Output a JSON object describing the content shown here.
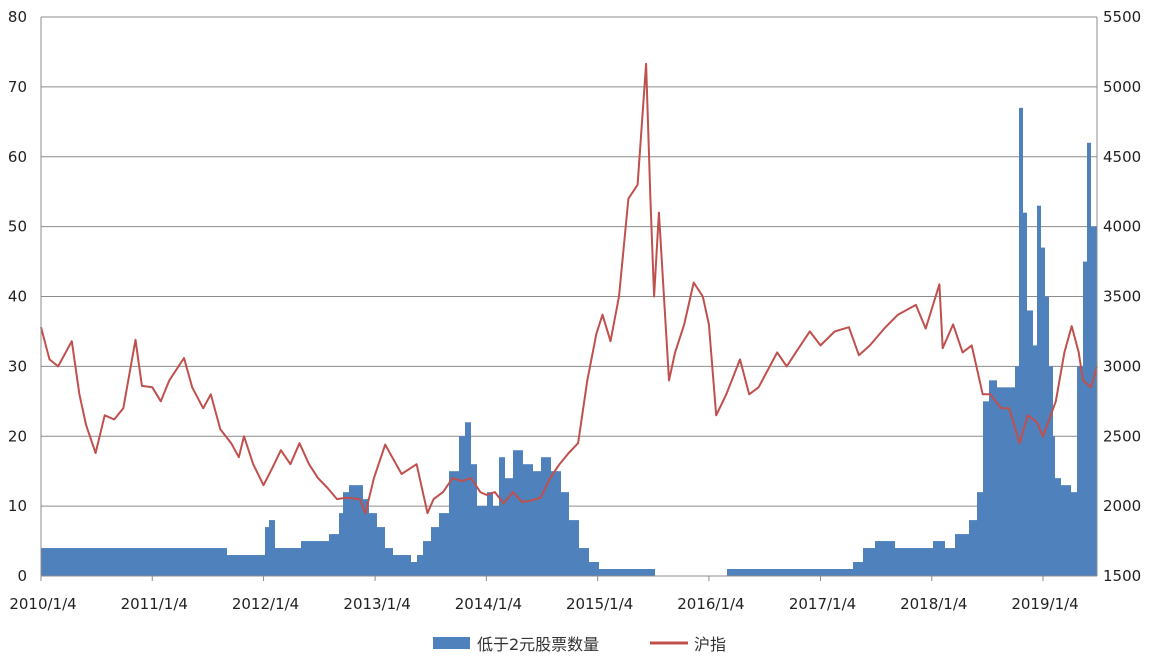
{
  "chart_data": {
    "type": "bar+line",
    "title": "",
    "xlabel": "",
    "x_tick_labels": [
      "2010/1/4",
      "2011/1/4",
      "2012/1/4",
      "2013/1/4",
      "2014/1/4",
      "2015/1/4",
      "2016/1/4",
      "2017/1/4",
      "2018/1/4",
      "2019/1/4"
    ],
    "y_left": {
      "ylim": [
        0,
        80
      ],
      "ticks": [
        "0",
        "10",
        "20",
        "30",
        "40",
        "50",
        "60",
        "70",
        "80"
      ]
    },
    "y_right": {
      "ylim": [
        1500,
        5500
      ],
      "ticks": [
        "1500",
        "2000",
        "2500",
        "3000",
        "3500",
        "4000",
        "4500",
        "5000",
        "5500"
      ]
    },
    "grid": "horizontal",
    "legend_position": "bottom",
    "x_range": [
      "2010-01-04",
      "2019-06-30"
    ],
    "series": [
      {
        "name": "低于2元股票数量",
        "type": "bar",
        "axis": "left",
        "color": "#4F81BD",
        "points": [
          [
            "2010-01-04",
            4
          ],
          [
            "2010-06-01",
            4
          ],
          [
            "2011-01-04",
            4
          ],
          [
            "2011-06-01",
            4
          ],
          [
            "2011-09-01",
            3
          ],
          [
            "2011-12-01",
            3
          ],
          [
            "2012-01-04",
            7
          ],
          [
            "2012-01-20",
            8
          ],
          [
            "2012-02-10",
            4
          ],
          [
            "2012-04-01",
            4
          ],
          [
            "2012-05-01",
            5
          ],
          [
            "2012-06-15",
            5
          ],
          [
            "2012-08-01",
            6
          ],
          [
            "2012-09-01",
            9
          ],
          [
            "2012-09-20",
            12
          ],
          [
            "2012-10-10",
            13
          ],
          [
            "2012-11-01",
            13
          ],
          [
            "2012-11-20",
            11
          ],
          [
            "2012-12-10",
            9
          ],
          [
            "2013-01-04",
            7
          ],
          [
            "2013-02-01",
            4
          ],
          [
            "2013-03-01",
            3
          ],
          [
            "2013-04-01",
            3
          ],
          [
            "2013-05-01",
            2
          ],
          [
            "2013-05-20",
            3
          ],
          [
            "2013-06-10",
            5
          ],
          [
            "2013-07-01",
            7
          ],
          [
            "2013-08-01",
            9
          ],
          [
            "2013-09-01",
            15
          ],
          [
            "2013-10-01",
            20
          ],
          [
            "2013-10-20",
            22
          ],
          [
            "2013-11-10",
            16
          ],
          [
            "2013-12-01",
            10
          ],
          [
            "2014-01-04",
            12
          ],
          [
            "2014-01-20",
            10
          ],
          [
            "2014-02-10",
            17
          ],
          [
            "2014-03-01",
            14
          ],
          [
            "2014-04-01",
            18
          ],
          [
            "2014-05-01",
            16
          ],
          [
            "2014-06-01",
            15
          ],
          [
            "2014-07-01",
            17
          ],
          [
            "2014-08-01",
            15
          ],
          [
            "2014-09-01",
            12
          ],
          [
            "2014-10-01",
            8
          ],
          [
            "2014-11-01",
            4
          ],
          [
            "2014-12-01",
            2
          ],
          [
            "2015-01-04",
            1
          ],
          [
            "2015-03-01",
            1
          ],
          [
            "2015-05-01",
            1
          ],
          [
            "2015-06-15",
            1
          ],
          [
            "2015-07-10",
            0
          ],
          [
            "2016-01-04",
            0
          ],
          [
            "2016-03-01",
            1
          ],
          [
            "2016-06-01",
            1
          ],
          [
            "2016-09-01",
            1
          ],
          [
            "2017-01-04",
            1
          ],
          [
            "2017-03-01",
            1
          ],
          [
            "2017-04-15",
            2
          ],
          [
            "2017-05-20",
            4
          ],
          [
            "2017-07-01",
            5
          ],
          [
            "2017-09-01",
            4
          ],
          [
            "2017-12-01",
            4
          ],
          [
            "2018-01-04",
            5
          ],
          [
            "2018-02-10",
            4
          ],
          [
            "2018-03-15",
            6
          ],
          [
            "2018-05-01",
            8
          ],
          [
            "2018-06-01",
            12
          ],
          [
            "2018-06-20",
            25
          ],
          [
            "2018-07-10",
            28
          ],
          [
            "2018-08-01",
            27
          ],
          [
            "2018-09-01",
            27
          ],
          [
            "2018-10-01",
            30
          ],
          [
            "2018-10-15",
            67
          ],
          [
            "2018-10-25",
            52
          ],
          [
            "2018-11-10",
            38
          ],
          [
            "2018-12-01",
            33
          ],
          [
            "2018-12-15",
            53
          ],
          [
            "2018-12-25",
            47
          ],
          [
            "2019-01-04",
            40
          ],
          [
            "2019-01-20",
            30
          ],
          [
            "2019-02-01",
            20
          ],
          [
            "2019-02-10",
            14
          ],
          [
            "2019-03-01",
            13
          ],
          [
            "2019-04-01",
            12
          ],
          [
            "2019-04-20",
            30
          ],
          [
            "2019-05-10",
            45
          ],
          [
            "2019-05-25",
            62
          ],
          [
            "2019-06-10",
            50
          ],
          [
            "2019-06-30",
            57
          ]
        ]
      },
      {
        "name": "沪指",
        "type": "line",
        "axis": "right",
        "color": "#C0504D",
        "points": [
          [
            "2010-01-04",
            3280
          ],
          [
            "2010-02-01",
            3050
          ],
          [
            "2010-03-01",
            3000
          ],
          [
            "2010-04-15",
            3180
          ],
          [
            "2010-05-10",
            2800
          ],
          [
            "2010-06-01",
            2580
          ],
          [
            "2010-07-02",
            2380
          ],
          [
            "2010-08-01",
            2650
          ],
          [
            "2010-09-01",
            2620
          ],
          [
            "2010-10-01",
            2700
          ],
          [
            "2010-11-10",
            3190
          ],
          [
            "2010-12-01",
            2860
          ],
          [
            "2011-01-04",
            2850
          ],
          [
            "2011-02-01",
            2750
          ],
          [
            "2011-03-01",
            2900
          ],
          [
            "2011-04-18",
            3060
          ],
          [
            "2011-05-15",
            2850
          ],
          [
            "2011-06-20",
            2700
          ],
          [
            "2011-07-15",
            2800
          ],
          [
            "2011-08-15",
            2550
          ],
          [
            "2011-09-20",
            2450
          ],
          [
            "2011-10-15",
            2350
          ],
          [
            "2011-11-01",
            2500
          ],
          [
            "2011-12-01",
            2300
          ],
          [
            "2012-01-04",
            2150
          ],
          [
            "2012-02-01",
            2270
          ],
          [
            "2012-03-01",
            2400
          ],
          [
            "2012-04-01",
            2300
          ],
          [
            "2012-05-01",
            2450
          ],
          [
            "2012-06-01",
            2300
          ],
          [
            "2012-07-01",
            2200
          ],
          [
            "2012-08-01",
            2130
          ],
          [
            "2012-09-01",
            2050
          ],
          [
            "2012-10-01",
            2060
          ],
          [
            "2012-11-15",
            2050
          ],
          [
            "2012-12-03",
            1949
          ],
          [
            "2012-12-31",
            2200
          ],
          [
            "2013-02-06",
            2440
          ],
          [
            "2013-03-01",
            2350
          ],
          [
            "2013-04-01",
            2230
          ],
          [
            "2013-05-20",
            2300
          ],
          [
            "2013-06-25",
            1950
          ],
          [
            "2013-07-15",
            2050
          ],
          [
            "2013-08-15",
            2100
          ],
          [
            "2013-09-15",
            2200
          ],
          [
            "2013-10-15",
            2180
          ],
          [
            "2013-11-15",
            2200
          ],
          [
            "2013-12-15",
            2100
          ],
          [
            "2014-01-04",
            2080
          ],
          [
            "2014-02-01",
            2100
          ],
          [
            "2014-03-01",
            2020
          ],
          [
            "2014-04-01",
            2100
          ],
          [
            "2014-05-01",
            2030
          ],
          [
            "2014-06-01",
            2040
          ],
          [
            "2014-07-01",
            2060
          ],
          [
            "2014-08-01",
            2200
          ],
          [
            "2014-09-01",
            2300
          ],
          [
            "2014-10-01",
            2380
          ],
          [
            "2014-11-01",
            2450
          ],
          [
            "2014-12-01",
            2900
          ],
          [
            "2014-12-31",
            3234
          ],
          [
            "2015-01-20",
            3370
          ],
          [
            "2015-02-15",
            3180
          ],
          [
            "2015-03-15",
            3500
          ],
          [
            "2015-04-15",
            4200
          ],
          [
            "2015-05-15",
            4300
          ],
          [
            "2015-06-12",
            5166
          ],
          [
            "2015-06-26",
            4200
          ],
          [
            "2015-07-08",
            3500
          ],
          [
            "2015-07-24",
            4100
          ],
          [
            "2015-08-26",
            2900
          ],
          [
            "2015-09-15",
            3100
          ],
          [
            "2015-10-15",
            3300
          ],
          [
            "2015-11-15",
            3600
          ],
          [
            "2015-12-15",
            3500
          ],
          [
            "2016-01-04",
            3300
          ],
          [
            "2016-01-28",
            2650
          ],
          [
            "2016-03-01",
            2800
          ],
          [
            "2016-04-15",
            3050
          ],
          [
            "2016-05-15",
            2800
          ],
          [
            "2016-06-15",
            2850
          ],
          [
            "2016-08-15",
            3100
          ],
          [
            "2016-09-15",
            3000
          ],
          [
            "2016-10-15",
            3100
          ],
          [
            "2016-11-30",
            3250
          ],
          [
            "2017-01-04",
            3150
          ],
          [
            "2017-02-20",
            3250
          ],
          [
            "2017-04-07",
            3280
          ],
          [
            "2017-05-10",
            3080
          ],
          [
            "2017-06-15",
            3150
          ],
          [
            "2017-08-01",
            3270
          ],
          [
            "2017-09-15",
            3370
          ],
          [
            "2017-11-13",
            3440
          ],
          [
            "2017-12-15",
            3270
          ],
          [
            "2018-01-29",
            3587
          ],
          [
            "2018-02-09",
            3130
          ],
          [
            "2018-03-15",
            3300
          ],
          [
            "2018-04-15",
            3100
          ],
          [
            "2018-05-15",
            3150
          ],
          [
            "2018-06-20",
            2800
          ],
          [
            "2018-07-15",
            2800
          ],
          [
            "2018-08-20",
            2700
          ],
          [
            "2018-09-15",
            2700
          ],
          [
            "2018-10-19",
            2450
          ],
          [
            "2018-11-15",
            2650
          ],
          [
            "2018-12-15",
            2600
          ],
          [
            "2019-01-04",
            2500
          ],
          [
            "2019-02-15",
            2750
          ],
          [
            "2019-03-15",
            3100
          ],
          [
            "2019-04-08",
            3288
          ],
          [
            "2019-05-01",
            3100
          ],
          [
            "2019-05-15",
            2900
          ],
          [
            "2019-06-10",
            2850
          ],
          [
            "2019-06-30",
            3000
          ]
        ]
      }
    ]
  }
}
